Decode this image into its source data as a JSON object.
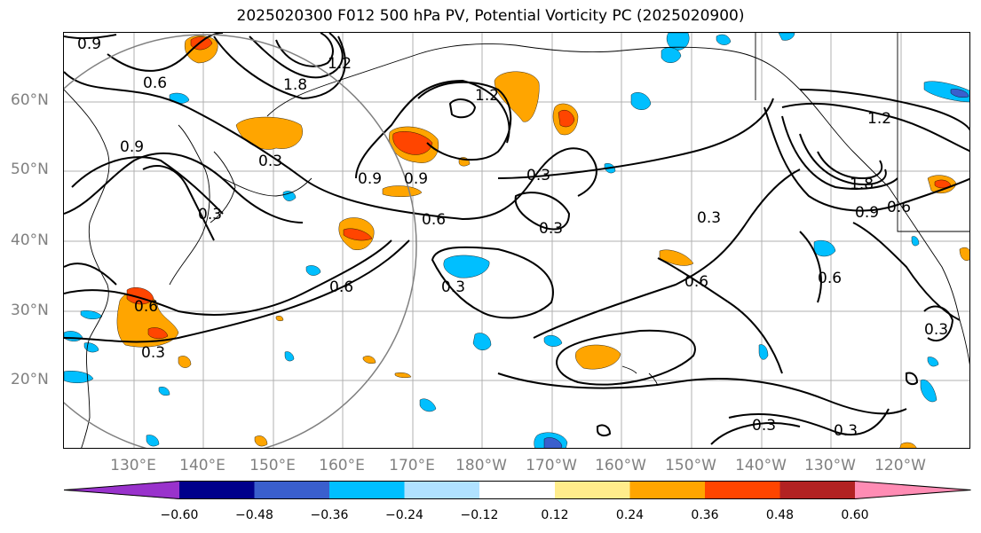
{
  "title": "2025020300 F012 500 hPa PV, Potential Vorticity PC (2025020900)",
  "map": {
    "projection": "PlateCarree",
    "lat_range": [
      10,
      70
    ],
    "lon_range": [
      "120°E",
      "250°E (110°W)"
    ],
    "grid": true,
    "lat_labels": [
      "60°N",
      "50°N",
      "40°N",
      "30°N",
      "20°N"
    ],
    "lon_labels": [
      "130°E",
      "140°E",
      "150°E",
      "160°E",
      "170°E",
      "180°W",
      "170°W",
      "160°W",
      "150°W",
      "140°W",
      "130°W",
      "120°W"
    ],
    "contour_labels": [
      "0.9",
      "0.6",
      "1.8",
      "1.2",
      "0.9",
      "0.3",
      "0.9",
      "0.9",
      "1.2",
      "0.3",
      "0.3",
      "0.6",
      "0.3",
      "1.2",
      "1.8",
      "0.9",
      "0.6",
      "0.3",
      "0.6",
      "0.3",
      "0.6",
      "0.6",
      "0.3",
      "0.6",
      "0.3",
      "0.3",
      "0.3"
    ],
    "shading": "positive anomalies orange/red, negative anomalies blue",
    "overlay": "grey circle centered near Japan"
  },
  "colorbar": {
    "extend": "both",
    "colors": [
      "#9932CC",
      "#00008B",
      "#3A5FCD",
      "#00BFFF",
      "#B0E2FF",
      "#FFFFFF",
      "#FFEC8B",
      "#FFA500",
      "#FF4500",
      "#B22222",
      "#FF8CB4"
    ],
    "ticks": [
      "−0.60",
      "−0.48",
      "−0.36",
      "−0.24",
      "−0.12",
      "0.12",
      "0.24",
      "0.36",
      "0.48",
      "0.60"
    ]
  }
}
